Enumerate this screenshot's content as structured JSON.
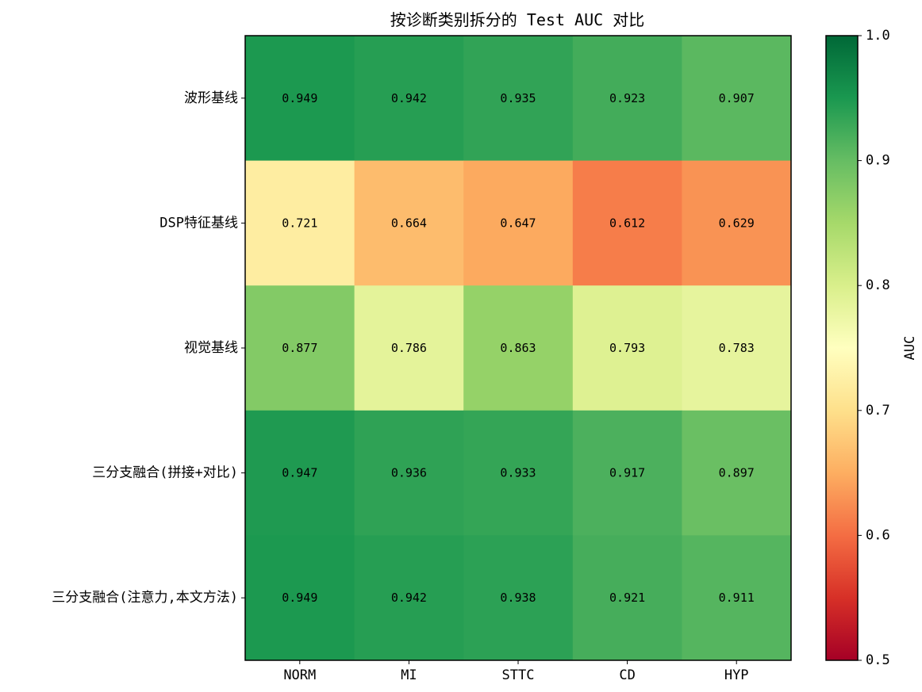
{
  "chart_data": {
    "type": "heatmap",
    "title": "按诊断类别拆分的 Test AUC 对比",
    "x_categories": [
      "NORM",
      "MI",
      "STTC",
      "CD",
      "HYP"
    ],
    "y_categories": [
      "波形基线",
      "DSP特征基线",
      "视觉基线",
      "三分支融合(拼接+对比)",
      "三分支融合(注意力,本文方法)"
    ],
    "values": [
      [
        0.949,
        0.942,
        0.935,
        0.923,
        0.907
      ],
      [
        0.721,
        0.664,
        0.647,
        0.612,
        0.629
      ],
      [
        0.877,
        0.786,
        0.863,
        0.793,
        0.783
      ],
      [
        0.947,
        0.936,
        0.933,
        0.917,
        0.897
      ],
      [
        0.949,
        0.942,
        0.938,
        0.921,
        0.911
      ]
    ],
    "value_format": "0.000",
    "colormap": "RdYlGn",
    "colorbar": {
      "label": "AUC",
      "vmin": 0.5,
      "vmax": 1.0,
      "ticks": [
        0.5,
        0.6,
        0.7,
        0.8,
        0.9,
        1.0
      ],
      "tick_labels": [
        "0.5",
        "0.6",
        "0.7",
        "0.8",
        "0.9",
        "1.0"
      ]
    },
    "xlabel": "",
    "ylabel": "",
    "grid": false
  }
}
